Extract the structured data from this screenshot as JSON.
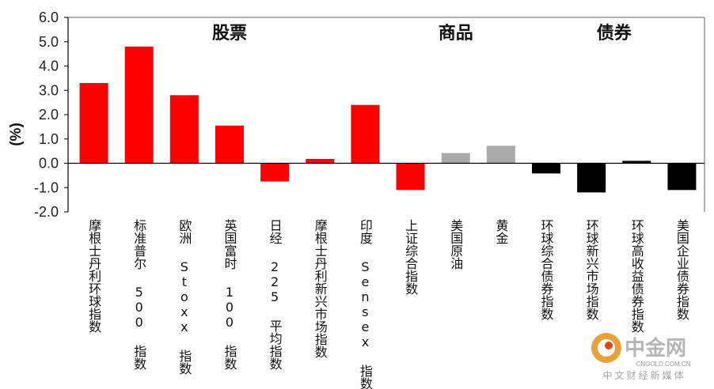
{
  "chart_data": {
    "type": "bar",
    "ylabel": "(%)",
    "ylim": [
      -2.0,
      6.0
    ],
    "yticks": [
      "6.0",
      "5.0",
      "4.0",
      "3.0",
      "2.0",
      "1.0",
      "0.0",
      "-1.0",
      "-2.0"
    ],
    "grid": false,
    "groups": [
      {
        "label": "股票",
        "start": 0,
        "end": 6
      },
      {
        "label": "商品",
        "start": 7,
        "end": 9
      },
      {
        "label": "债券",
        "start": 10,
        "end": 13
      }
    ],
    "categories": [
      "摩根士丹利环球指数",
      "标准普尔 500 指数",
      "欧洲 Stoxx 指数",
      "英国富时 100 指数",
      "日经 225 平均指数",
      "摩根士丹利新兴市场指数",
      "印度 Sensex 指数",
      "上证综合指数",
      "美国原油",
      "黄金",
      "环球综合债券指数",
      "环球新兴市场指数",
      "环球高收益债券指数",
      "美国企业债券指数"
    ],
    "values": [
      3.3,
      4.8,
      2.8,
      1.55,
      -0.75,
      0.18,
      2.4,
      -1.1,
      0.42,
      0.72,
      -0.42,
      -1.2,
      0.1,
      -1.1
    ],
    "colors": [
      "#ff0000",
      "#ff0000",
      "#ff0000",
      "#ff0000",
      "#ff0000",
      "#ff0000",
      "#ff0000",
      "#ff0000",
      "#aaaaaa",
      "#aaaaaa",
      "#000000",
      "#000000",
      "#000000",
      "#000000"
    ]
  },
  "watermark": {
    "name": "中金网",
    "domain": "CNGOLD.COM.CN",
    "tagline": "中文财经新媒体",
    "logo_color": "#e8a13a"
  }
}
